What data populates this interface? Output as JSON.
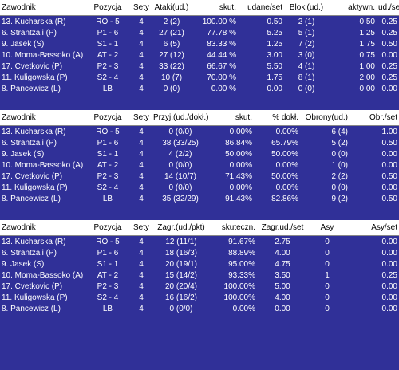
{
  "tables": [
    {
      "headers": [
        "Zawodnik",
        "Pozycja",
        "Sety",
        "Ataki(ud.)",
        "skut.",
        "udane/set",
        "Bloki(ud.)",
        "aktywn.",
        "ud./set"
      ],
      "rows": [
        [
          "13. Kucharska (R)",
          "RO - 5",
          "4",
          "2 (2)",
          "100.00 %",
          "0.50",
          "2 (1)",
          "0.50",
          "0.25"
        ],
        [
          "6. Strantzali (P)",
          "P1 - 6",
          "4",
          "27 (21)",
          "77.78 %",
          "5.25",
          "5 (1)",
          "1.25",
          "0.25"
        ],
        [
          "9. Jasek (S)",
          "S1 - 1",
          "4",
          "6 (5)",
          "83.33 %",
          "1.25",
          "7 (2)",
          "1.75",
          "0.50"
        ],
        [
          "10. Moma-Bassoko (A)",
          "AT - 2",
          "4",
          "27 (12)",
          "44.44 %",
          "3.00",
          "3 (0)",
          "0.75",
          "0.00"
        ],
        [
          "17. Cvetkovic (P)",
          "P2 - 3",
          "4",
          "33 (22)",
          "66.67 %",
          "5.50",
          "4 (1)",
          "1.00",
          "0.25"
        ],
        [
          "11. Kuligowska (P)",
          "S2 - 4",
          "4",
          "10 (7)",
          "70.00 %",
          "1.75",
          "8 (1)",
          "2.00",
          "0.25"
        ],
        [
          "8. Pancewicz (L)",
          "LB",
          "4",
          "0 (0)",
          "0.00 %",
          "0.00",
          "0 (0)",
          "0.00",
          "0.00"
        ]
      ]
    },
    {
      "headers": [
        "Zawodnik",
        "Pozycja",
        "Sety",
        "Przyj.(ud./dokł.)",
        "skut.",
        "% dokł.",
        "Obrony(ud.)",
        "Obr./set"
      ],
      "rows": [
        [
          "13. Kucharska (R)",
          "RO - 5",
          "4",
          "0 (0/0)",
          "0.00%",
          "0.00%",
          "6 (4)",
          "1.00"
        ],
        [
          "6. Strantzali (P)",
          "P1 - 6",
          "4",
          "38 (33/25)",
          "86.84%",
          "65.79%",
          "5 (2)",
          "0.50"
        ],
        [
          "9. Jasek (S)",
          "S1 - 1",
          "4",
          "4 (2/2)",
          "50.00%",
          "50.00%",
          "0 (0)",
          "0.00"
        ],
        [
          "10. Moma-Bassoko (A)",
          "AT - 2",
          "4",
          "0 (0/0)",
          "0.00%",
          "0.00%",
          "1 (0)",
          "0.00"
        ],
        [
          "17. Cvetkovic (P)",
          "P2 - 3",
          "4",
          "14 (10/7)",
          "71.43%",
          "50.00%",
          "2 (2)",
          "0.50"
        ],
        [
          "11. Kuligowska (P)",
          "S2 - 4",
          "4",
          "0 (0/0)",
          "0.00%",
          "0.00%",
          "0 (0)",
          "0.00"
        ],
        [
          "8. Pancewicz (L)",
          "LB",
          "4",
          "35 (32/29)",
          "91.43%",
          "82.86%",
          "9 (2)",
          "0.50"
        ]
      ]
    },
    {
      "headers": [
        "Zawodnik",
        "Pozycja",
        "Sety",
        "Zagr.(ud./pkt)",
        "skuteczn.",
        "Zagr.ud./set",
        "Asy",
        "Asy/set"
      ],
      "rows": [
        [
          "13. Kucharska (R)",
          "RO - 5",
          "4",
          "12 (11/1)",
          "91.67%",
          "2.75",
          "0",
          "0.00"
        ],
        [
          "6. Strantzali (P)",
          "P1 - 6",
          "4",
          "18 (16/3)",
          "88.89%",
          "4.00",
          "0",
          "0.00"
        ],
        [
          "9. Jasek (S)",
          "S1 - 1",
          "4",
          "20 (19/1)",
          "95.00%",
          "4.75",
          "0",
          "0.00"
        ],
        [
          "10. Moma-Bassoko (A)",
          "AT - 2",
          "4",
          "15 (14/2)",
          "93.33%",
          "3.50",
          "1",
          "0.25"
        ],
        [
          "17. Cvetkovic (P)",
          "P2 - 3",
          "4",
          "20 (20/4)",
          "100.00%",
          "5.00",
          "0",
          "0.00"
        ],
        [
          "11. Kuligowska (P)",
          "S2 - 4",
          "4",
          "16 (16/2)",
          "100.00%",
          "4.00",
          "0",
          "0.00"
        ],
        [
          "8. Pancewicz (L)",
          "LB",
          "4",
          "0 (0/0)",
          "0.00%",
          "0.00",
          "0",
          "0.00"
        ]
      ]
    }
  ]
}
